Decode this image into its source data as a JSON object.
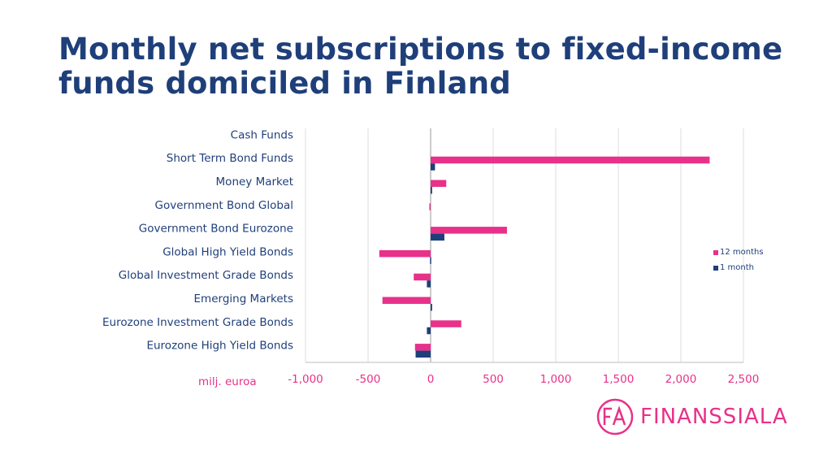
{
  "title_line1": "Monthly net subscriptions to fixed-income",
  "title_line2": "funds domiciled in Finland",
  "unit_label": "milj. euroa",
  "logo_text": "FINANSSIALA",
  "colors": {
    "title": "#1f3f7a",
    "series_12m": "#e8318a",
    "series_1m": "#1f3f7a",
    "accent": "#e8318a"
  },
  "chart_data": {
    "type": "bar",
    "orientation": "horizontal",
    "title": "Monthly net subscriptions to fixed-income funds domiciled in Finland",
    "xlabel": "milj. euroa",
    "xlim": [
      -1000,
      2500
    ],
    "xticks": [
      -1000,
      -500,
      0,
      500,
      1000,
      1500,
      2000,
      2500
    ],
    "xtick_labels": [
      "-1,000",
      "-500",
      "0",
      "500",
      "1,000",
      "1,500",
      "2,000",
      "2,500"
    ],
    "grid": true,
    "legend_position": "right",
    "categories": [
      "Cash Funds",
      "Short Term Bond Funds",
      "Money Market",
      "Government Bond Global",
      "Government Bond Eurozone",
      "Global High Yield Bonds",
      "Global Investment Grade Bonds",
      "Emerging Markets",
      "Eurozone Investment Grade Bonds",
      "Eurozone High Yield Bonds"
    ],
    "series": [
      {
        "name": "12 months",
        "values": [
          0,
          2230,
          125,
          -10,
          610,
          -410,
          -135,
          -385,
          245,
          -125
        ]
      },
      {
        "name": "1 month",
        "values": [
          0,
          35,
          12,
          0,
          110,
          -5,
          -30,
          12,
          -30,
          -120
        ]
      }
    ]
  }
}
